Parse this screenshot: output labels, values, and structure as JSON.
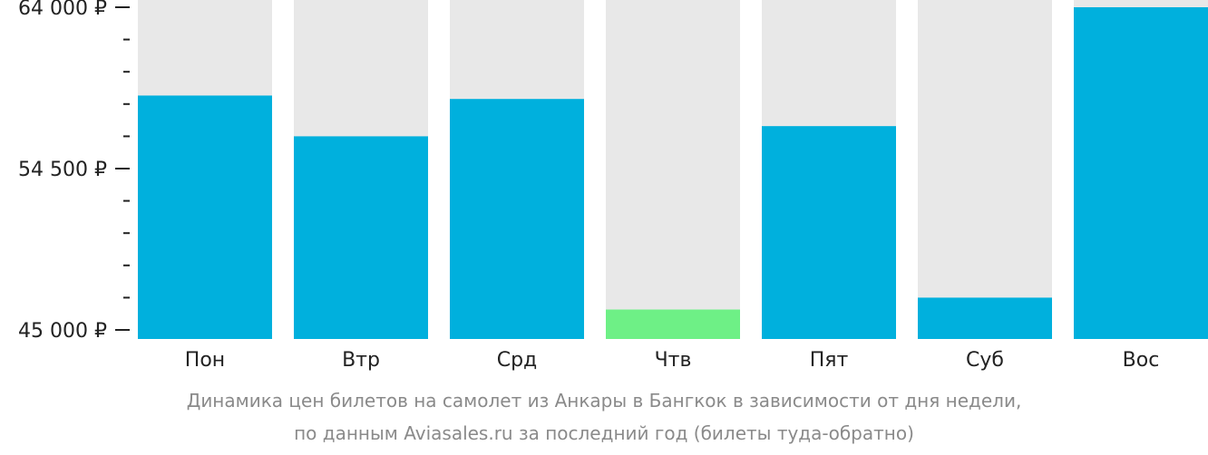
{
  "chart_data": {
    "type": "bar",
    "categories": [
      "Пон",
      "Втр",
      "Срд",
      "Чтв",
      "Пят",
      "Суб",
      "Вос"
    ],
    "values": [
      58800,
      56400,
      58600,
      46200,
      57000,
      46900,
      64000
    ],
    "highlight_index": 3,
    "ylim": [
      45000,
      64000
    ],
    "yticks": [
      {
        "value": 64000,
        "label": "64 000 ₽"
      },
      {
        "value": 54500,
        "label": "54 500 ₽"
      },
      {
        "value": 45000,
        "label": "45 000 ₽"
      }
    ],
    "minor_ticks_between": 4,
    "title": "",
    "xlabel": "",
    "ylabel": "",
    "grid": false,
    "colors": {
      "bar": "#00b0dd",
      "highlight": "#6ef086",
      "background_bar": "#e8e8e8",
      "axis": "#222222"
    }
  },
  "caption": {
    "line1": "Динамика цен билетов на самолет из Анкары в Бангкок в зависимости от дня недели,",
    "line2": "по данным Aviasales.ru за последний год (билеты туда-обратно)"
  }
}
